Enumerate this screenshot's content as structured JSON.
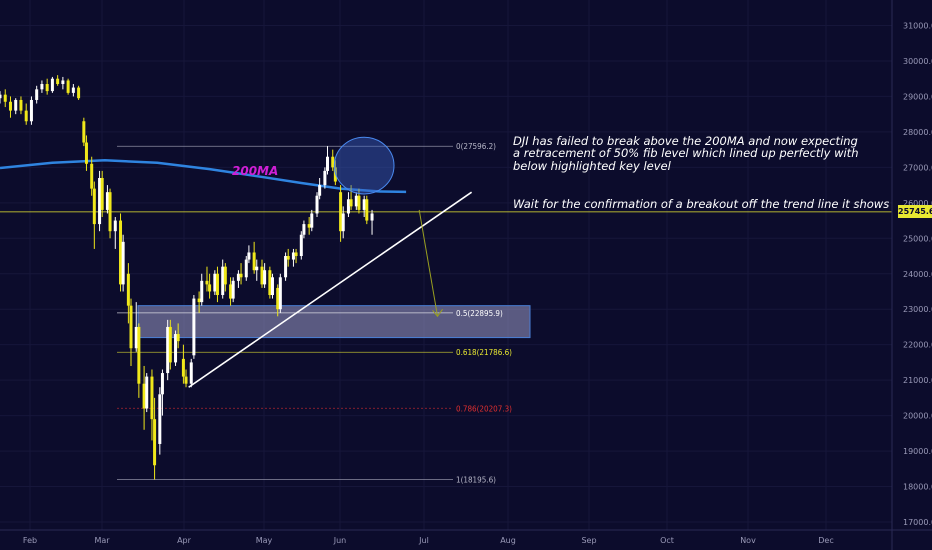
{
  "chart_data": {
    "type": "candlestick",
    "instrument": "DJI",
    "y_axis_ticks": [
      31000,
      30000,
      29000,
      28000,
      27000,
      26000,
      25000,
      24000,
      23000,
      22000,
      21000,
      20000,
      19000,
      18000,
      17000
    ],
    "y_axis_tick_labels": [
      "31000.0",
      "30000.0",
      "29000.0",
      "28000.0",
      "27000.0",
      "26000.0",
      "25000.0",
      "24000.0",
      "23000.0",
      "22000.0",
      "21000.0",
      "20000.0",
      "19000.0",
      "18000.0",
      "17000.0"
    ],
    "ylim": [
      16800,
      31600
    ],
    "x_axis_ticks": [
      "Feb",
      "Mar",
      "Apr",
      "May",
      "Jun",
      "Jul",
      "Aug",
      "Sep",
      "Oct",
      "Nov",
      "Dec"
    ],
    "current_price": 25745.6,
    "current_price_label": "25745.6",
    "fib_levels": [
      {
        "ratio": 0,
        "price": 27596.2,
        "label": "0(27596.2)",
        "color": "#b8b8c8"
      },
      {
        "ratio": 0.5,
        "price": 22895.9,
        "label": "0.5(22895.9)",
        "color": "#ffffff"
      },
      {
        "ratio": 0.618,
        "price": 21786.6,
        "label": "0.618(21786.6)",
        "color": "#e8e831"
      },
      {
        "ratio": 0.786,
        "price": 20207.3,
        "label": "0.786(20207.3)",
        "color": "#e03030"
      },
      {
        "ratio": 1,
        "price": 18195.6,
        "label": "1(18195.6)",
        "color": "#b8b8c8"
      }
    ],
    "key_zone": {
      "from": 22200,
      "to": 23100
    },
    "ma_label": "200MA",
    "ma_200": [
      {
        "day": 0,
        "price": 26980
      },
      {
        "day": 20,
        "price": 27130
      },
      {
        "day": 40,
        "price": 27200
      },
      {
        "day": 60,
        "price": 27130
      },
      {
        "day": 80,
        "price": 26950
      },
      {
        "day": 100,
        "price": 26730
      },
      {
        "day": 115,
        "price": 26560
      },
      {
        "day": 130,
        "price": 26400
      },
      {
        "day": 145,
        "price": 26320
      },
      {
        "day": 155,
        "price": 26310
      }
    ],
    "trendline": [
      {
        "day": 72,
        "price": 20800
      },
      {
        "day": 180,
        "price": 26300
      }
    ],
    "projection_arrow": [
      {
        "day": 160,
        "price": 25800
      },
      {
        "day": 167,
        "price": 22800
      }
    ],
    "highlight_ellipse": {
      "center_day": 139,
      "center_price": 27050,
      "radius_days": 11,
      "radius_price": 800
    },
    "candles": [
      {
        "t": 0,
        "o": 28950,
        "h": 29150,
        "l": 28800,
        "c": 29050
      },
      {
        "t": 2,
        "o": 29050,
        "h": 29200,
        "l": 28700,
        "c": 28850
      },
      {
        "t": 4,
        "o": 28850,
        "h": 29000,
        "l": 28400,
        "c": 28600
      },
      {
        "t": 6,
        "o": 28600,
        "h": 28950,
        "l": 28500,
        "c": 28900
      },
      {
        "t": 8,
        "o": 28900,
        "h": 29000,
        "l": 28500,
        "c": 28600
      },
      {
        "t": 10,
        "o": 28600,
        "h": 28800,
        "l": 28200,
        "c": 28300
      },
      {
        "t": 12,
        "o": 28300,
        "h": 29000,
        "l": 28200,
        "c": 28900
      },
      {
        "t": 14,
        "o": 28900,
        "h": 29300,
        "l": 28800,
        "c": 29200
      },
      {
        "t": 16,
        "o": 29200,
        "h": 29450,
        "l": 29100,
        "c": 29350
      },
      {
        "t": 18,
        "o": 29350,
        "h": 29500,
        "l": 29050,
        "c": 29150
      },
      {
        "t": 20,
        "o": 29150,
        "h": 29550,
        "l": 29100,
        "c": 29500
      },
      {
        "t": 22,
        "o": 29500,
        "h": 29600,
        "l": 29300,
        "c": 29350
      },
      {
        "t": 24,
        "o": 29350,
        "h": 29550,
        "l": 29200,
        "c": 29450
      },
      {
        "t": 26,
        "o": 29450,
        "h": 29500,
        "l": 29050,
        "c": 29100
      },
      {
        "t": 28,
        "o": 29100,
        "h": 29350,
        "l": 29000,
        "c": 29250
      },
      {
        "t": 30,
        "o": 29250,
        "h": 29300,
        "l": 28900,
        "c": 28950
      },
      {
        "t": 32,
        "o": 28300,
        "h": 28400,
        "l": 27600,
        "c": 27700
      },
      {
        "t": 33,
        "o": 27700,
        "h": 27900,
        "l": 26900,
        "c": 27100
      },
      {
        "t": 35,
        "o": 27100,
        "h": 27300,
        "l": 26200,
        "c": 26400
      },
      {
        "t": 36,
        "o": 26400,
        "h": 26600,
        "l": 24700,
        "c": 25400
      },
      {
        "t": 38,
        "o": 25400,
        "h": 26900,
        "l": 25200,
        "c": 26700
      },
      {
        "t": 39,
        "o": 26700,
        "h": 26900,
        "l": 25600,
        "c": 25800
      },
      {
        "t": 41,
        "o": 25800,
        "h": 26500,
        "l": 25700,
        "c": 26300
      },
      {
        "t": 42,
        "o": 26300,
        "h": 26400,
        "l": 25000,
        "c": 25200
      },
      {
        "t": 44,
        "o": 25200,
        "h": 25600,
        "l": 24700,
        "c": 25500
      },
      {
        "t": 46,
        "o": 25500,
        "h": 25700,
        "l": 23500,
        "c": 23700
      },
      {
        "t": 47,
        "o": 23700,
        "h": 25100,
        "l": 23500,
        "c": 24900
      },
      {
        "t": 49,
        "o": 24000,
        "h": 24300,
        "l": 22600,
        "c": 23100
      },
      {
        "t": 50,
        "o": 23100,
        "h": 23300,
        "l": 21400,
        "c": 21900
      },
      {
        "t": 52,
        "o": 21900,
        "h": 23200,
        "l": 21800,
        "c": 22500
      },
      {
        "t": 53,
        "o": 22500,
        "h": 22600,
        "l": 20500,
        "c": 20900
      },
      {
        "t": 55,
        "o": 20900,
        "h": 21400,
        "l": 19600,
        "c": 20200
      },
      {
        "t": 56,
        "o": 20200,
        "h": 21200,
        "l": 20100,
        "c": 21100
      },
      {
        "t": 58,
        "o": 21100,
        "h": 21300,
        "l": 19300,
        "c": 19900
      },
      {
        "t": 59,
        "o": 19900,
        "h": 20500,
        "l": 18200,
        "c": 18600
      },
      {
        "t": 61,
        "o": 19200,
        "h": 20800,
        "l": 18900,
        "c": 20600
      },
      {
        "t": 62,
        "o": 20600,
        "h": 21300,
        "l": 20000,
        "c": 21200
      },
      {
        "t": 64,
        "o": 21200,
        "h": 22700,
        "l": 21000,
        "c": 22500
      },
      {
        "t": 65,
        "o": 22500,
        "h": 22700,
        "l": 21300,
        "c": 21500
      },
      {
        "t": 67,
        "o": 21500,
        "h": 22400,
        "l": 21400,
        "c": 22300
      },
      {
        "t": 68,
        "o": 22300,
        "h": 22600,
        "l": 21900,
        "c": 22100
      },
      {
        "t": 70,
        "o": 21600,
        "h": 22000,
        "l": 20900,
        "c": 21100
      },
      {
        "t": 71,
        "o": 21100,
        "h": 21300,
        "l": 20800,
        "c": 20900
      },
      {
        "t": 73,
        "o": 20900,
        "h": 21600,
        "l": 20800,
        "c": 21500
      },
      {
        "t": 74,
        "o": 21700,
        "h": 23400,
        "l": 21600,
        "c": 23300
      },
      {
        "t": 76,
        "o": 23300,
        "h": 23500,
        "l": 22900,
        "c": 23200
      },
      {
        "t": 77,
        "o": 23200,
        "h": 24000,
        "l": 23100,
        "c": 23800
      },
      {
        "t": 79,
        "o": 23800,
        "h": 24200,
        "l": 23500,
        "c": 23700
      },
      {
        "t": 80,
        "o": 23700,
        "h": 24000,
        "l": 23300,
        "c": 23500
      },
      {
        "t": 82,
        "o": 23500,
        "h": 24100,
        "l": 23400,
        "c": 24000
      },
      {
        "t": 83,
        "o": 24000,
        "h": 24200,
        "l": 23200,
        "c": 23400
      },
      {
        "t": 85,
        "o": 23400,
        "h": 24400,
        "l": 23300,
        "c": 24200
      },
      {
        "t": 86,
        "o": 24200,
        "h": 24300,
        "l": 23500,
        "c": 23700
      },
      {
        "t": 88,
        "o": 23700,
        "h": 23900,
        "l": 23100,
        "c": 23300
      },
      {
        "t": 89,
        "o": 23300,
        "h": 23900,
        "l": 23200,
        "c": 23800
      },
      {
        "t": 91,
        "o": 23800,
        "h": 24100,
        "l": 23600,
        "c": 24000
      },
      {
        "t": 92,
        "o": 24000,
        "h": 24300,
        "l": 23700,
        "c": 23900
      },
      {
        "t": 94,
        "o": 23900,
        "h": 24500,
        "l": 23800,
        "c": 24400
      },
      {
        "t": 95,
        "o": 24400,
        "h": 24800,
        "l": 24300,
        "c": 24600
      },
      {
        "t": 97,
        "o": 24600,
        "h": 24900,
        "l": 24000,
        "c": 24100
      },
      {
        "t": 98,
        "o": 24100,
        "h": 24400,
        "l": 23800,
        "c": 24200
      },
      {
        "t": 100,
        "o": 24200,
        "h": 24400,
        "l": 23600,
        "c": 23700
      },
      {
        "t": 101,
        "o": 23700,
        "h": 24300,
        "l": 23600,
        "c": 24100
      },
      {
        "t": 103,
        "o": 24100,
        "h": 24200,
        "l": 23300,
        "c": 23400
      },
      {
        "t": 104,
        "o": 23400,
        "h": 24000,
        "l": 23300,
        "c": 23900
      },
      {
        "t": 106,
        "o": 23600,
        "h": 23700,
        "l": 22800,
        "c": 23000
      },
      {
        "t": 107,
        "o": 23000,
        "h": 24000,
        "l": 22900,
        "c": 23900
      },
      {
        "t": 109,
        "o": 23900,
        "h": 24600,
        "l": 23800,
        "c": 24500
      },
      {
        "t": 110,
        "o": 24500,
        "h": 24700,
        "l": 24200,
        "c": 24400
      },
      {
        "t": 112,
        "o": 24400,
        "h": 24700,
        "l": 24200,
        "c": 24600
      },
      {
        "t": 113,
        "o": 24600,
        "h": 24700,
        "l": 24300,
        "c": 24500
      },
      {
        "t": 115,
        "o": 24500,
        "h": 25200,
        "l": 24400,
        "c": 25100
      },
      {
        "t": 116,
        "o": 25100,
        "h": 25500,
        "l": 25000,
        "c": 25400
      },
      {
        "t": 118,
        "o": 25400,
        "h": 25600,
        "l": 25100,
        "c": 25300
      },
      {
        "t": 119,
        "o": 25300,
        "h": 25800,
        "l": 25200,
        "c": 25700
      },
      {
        "t": 121,
        "o": 25700,
        "h": 26300,
        "l": 25600,
        "c": 26200
      },
      {
        "t": 122,
        "o": 26200,
        "h": 26700,
        "l": 26100,
        "c": 26500
      },
      {
        "t": 124,
        "o": 26500,
        "h": 27000,
        "l": 26400,
        "c": 26900
      },
      {
        "t": 125,
        "o": 26900,
        "h": 27600,
        "l": 26800,
        "c": 27300
      },
      {
        "t": 127,
        "o": 27300,
        "h": 27500,
        "l": 26900,
        "c": 27000
      },
      {
        "t": 128,
        "o": 27000,
        "h": 27200,
        "l": 26500,
        "c": 26600
      },
      {
        "t": 130,
        "o": 26300,
        "h": 26500,
        "l": 24900,
        "c": 25200
      },
      {
        "t": 131,
        "o": 25200,
        "h": 25900,
        "l": 25000,
        "c": 25700
      },
      {
        "t": 133,
        "o": 25700,
        "h": 26300,
        "l": 25600,
        "c": 26100
      },
      {
        "t": 134,
        "o": 26100,
        "h": 26500,
        "l": 25800,
        "c": 25900
      },
      {
        "t": 136,
        "o": 25900,
        "h": 26300,
        "l": 25800,
        "c": 26200
      },
      {
        "t": 137,
        "o": 26200,
        "h": 26400,
        "l": 25700,
        "c": 25800
      },
      {
        "t": 139,
        "o": 25800,
        "h": 26200,
        "l": 25600,
        "c": 26100
      },
      {
        "t": 140,
        "o": 26100,
        "h": 26200,
        "l": 25400,
        "c": 25500
      },
      {
        "t": 142,
        "o": 25500,
        "h": 25800,
        "l": 25100,
        "c": 25700
      }
    ]
  }
}
